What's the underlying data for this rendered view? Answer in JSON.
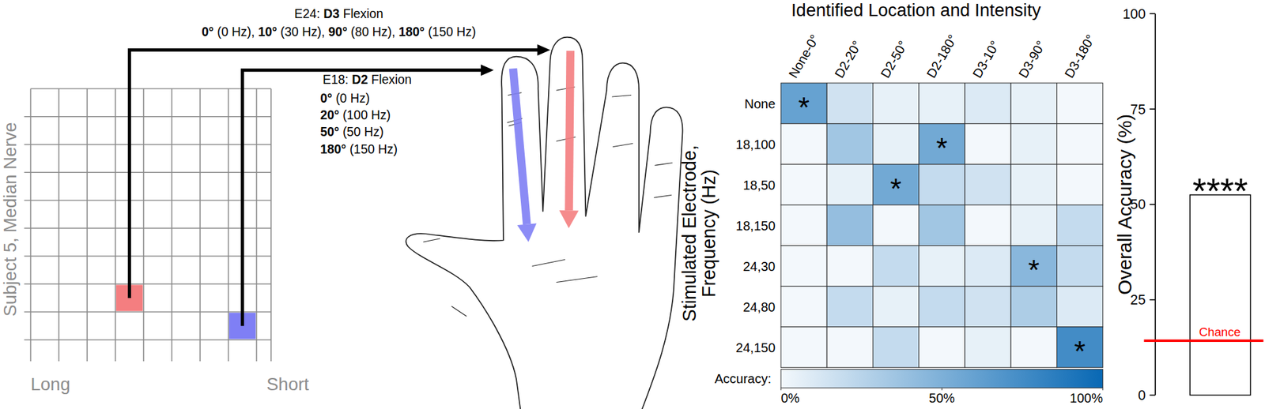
{
  "diagram": {
    "grid": {
      "label": "Subject 5, Median Nerve",
      "left_label": "Long",
      "right_label": "Short"
    },
    "electrodes": [
      {
        "label": [
          {
            "text": "E24: ",
            "bold": false
          },
          {
            "text": "D3",
            "bold": true
          },
          {
            "text": " Flexion",
            "bold": false
          }
        ],
        "color": "#f47e80",
        "separator": ", ",
        "mappings": [
          {
            "angle": "0°",
            "freq": " (0 Hz)"
          },
          {
            "angle": "10°",
            "freq": " (30 Hz)"
          },
          {
            "angle": "90°",
            "freq": " (80 Hz)"
          },
          {
            "angle": "180°",
            "freq": " (150 Hz)"
          }
        ]
      },
      {
        "label": [
          {
            "text": "E18: ",
            "bold": false
          },
          {
            "text": "D2",
            "bold": true
          },
          {
            "text": " Flexion",
            "bold": false
          }
        ],
        "color": "#7f7ff5",
        "mappings": [
          {
            "angle": "0°",
            "freq": " (0 Hz)"
          },
          {
            "angle": "20°",
            "freq": " (100 Hz)"
          },
          {
            "angle": "50°",
            "freq": " (50 Hz)"
          },
          {
            "angle": "180°",
            "freq": " (150 Hz)"
          }
        ]
      }
    ]
  },
  "chart_data": [
    {
      "type": "heatmap",
      "title": "Identified Location and Intensity",
      "x_categories": [
        "None-0°",
        "D2-20°",
        "D2-50°",
        "D2-180°",
        "D3-10°",
        "D3-90°",
        "D3-180°"
      ],
      "y_categories": [
        "None",
        "18,100",
        "18,50",
        "18,150",
        "24,30",
        "24,80",
        "24,150"
      ],
      "y_label": [
        "Stimulated Electrode,",
        "Frequency (Hz)"
      ],
      "cells": [
        [
          60,
          15,
          5,
          5,
          10,
          5,
          0
        ],
        [
          0,
          35,
          5,
          55,
          0,
          5,
          0
        ],
        [
          0,
          5,
          55,
          20,
          15,
          5,
          0
        ],
        [
          0,
          40,
          0,
          35,
          0,
          5,
          20
        ],
        [
          0,
          0,
          20,
          5,
          10,
          45,
          20
        ],
        [
          0,
          20,
          5,
          20,
          15,
          30,
          10
        ],
        [
          0,
          0,
          20,
          0,
          5,
          0,
          75
        ]
      ],
      "stars": [
        [
          0,
          0
        ],
        [
          1,
          3
        ],
        [
          2,
          2
        ],
        [
          4,
          5
        ],
        [
          6,
          6
        ]
      ],
      "star_label": "*",
      "colorbar": {
        "label": "Accuracy:",
        "range": [
          0,
          100
        ],
        "ticks": [
          {
            "value": 0,
            "label": "0%"
          },
          {
            "value": 50,
            "label": "50%"
          },
          {
            "value": 100,
            "label": "100%"
          }
        ],
        "colors": [
          "#f3f8fc",
          "#0868b4"
        ]
      }
    },
    {
      "type": "bar",
      "categories": [
        null
      ],
      "values": [
        52.5
      ],
      "color": "#ffffff",
      "y_label": "Overall Accuracy (%)",
      "ylim": [
        0,
        100
      ],
      "yticks": [
        0,
        25,
        50,
        75,
        100
      ],
      "significance": "****",
      "reference_line": {
        "value": 14.29,
        "label": "Chance",
        "color": "#ff0000"
      }
    }
  ]
}
